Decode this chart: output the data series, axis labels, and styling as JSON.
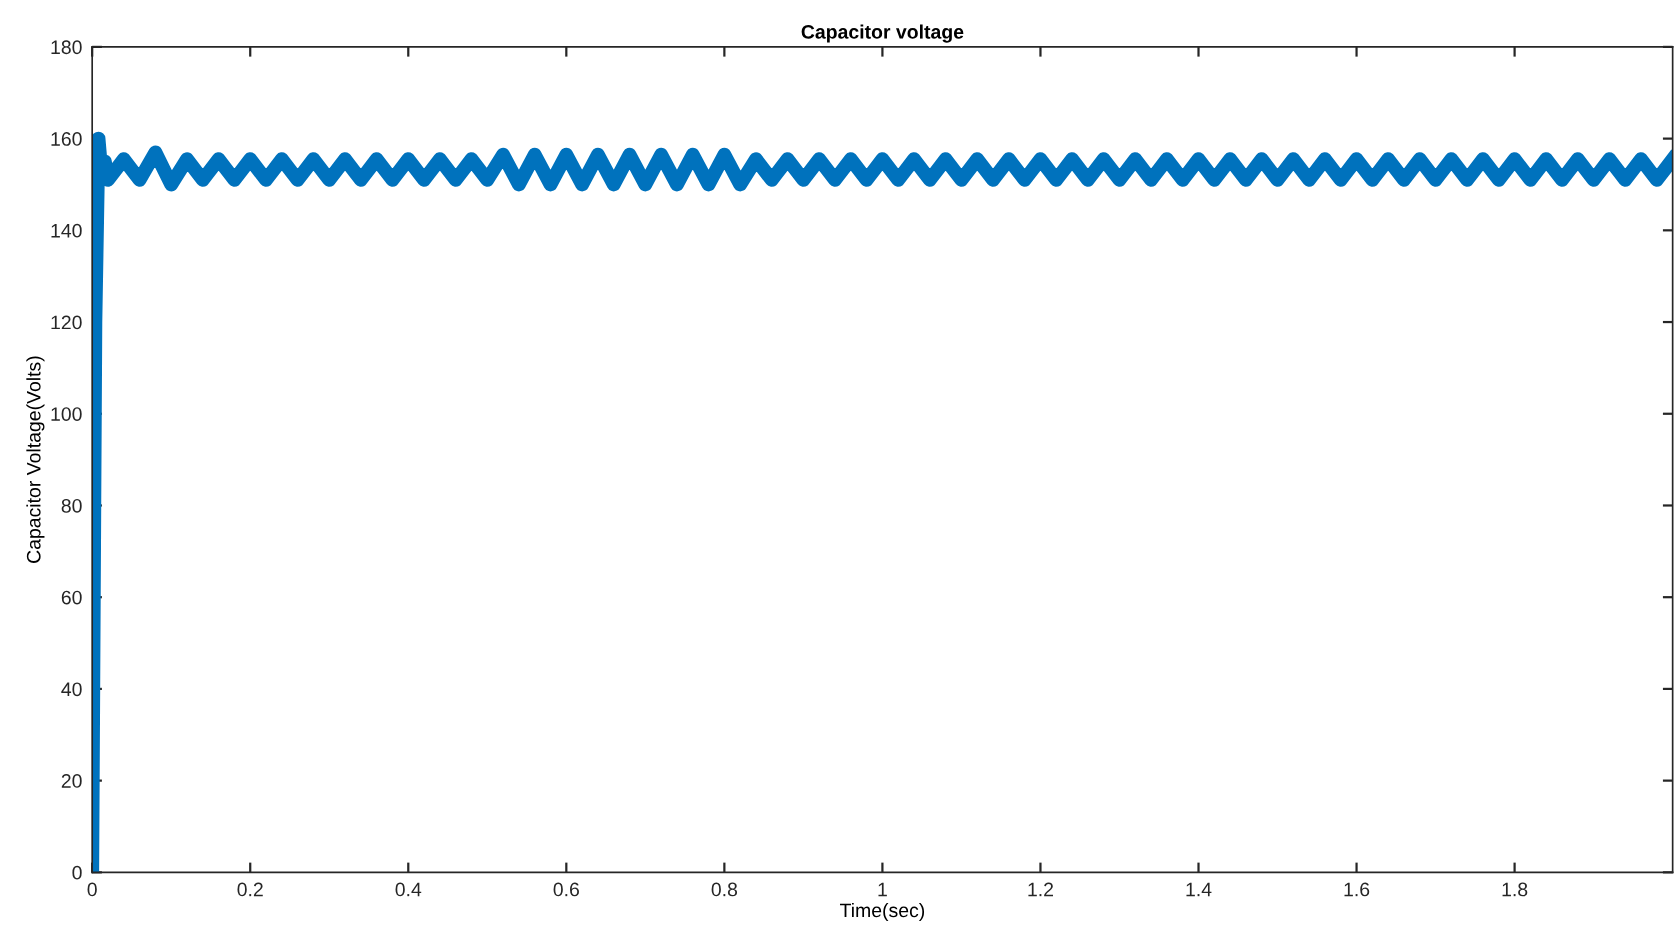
{
  "chart_data": {
    "type": "line",
    "title": "Capacitor voltage",
    "xlabel": "Time(sec)",
    "ylabel": "Capacitor Voltage(Volts)",
    "xlim": [
      0,
      2
    ],
    "xticks": [
      0,
      0.2,
      0.4,
      0.6,
      0.8,
      1,
      1.2,
      1.4,
      1.6,
      1.8
    ],
    "ylim": [
      0,
      180
    ],
    "yticks": [
      0,
      20,
      40,
      60,
      80,
      100,
      120,
      140,
      160,
      180
    ],
    "grid": false,
    "line_style": "solid",
    "series": [
      {
        "color": "#0072bd",
        "x": [
          0,
          0.004,
          0.008,
          0.012,
          0.016,
          0.02,
          0.04,
          0.06,
          0.08,
          0.1,
          0.12,
          0.14,
          0.16,
          0.18,
          0.2,
          0.22,
          0.24,
          0.26,
          0.28,
          0.3,
          0.32,
          0.34,
          0.36,
          0.38,
          0.4,
          0.42,
          0.44,
          0.46,
          0.48,
          0.5,
          0.52,
          0.54,
          0.56,
          0.58,
          0.6,
          0.62,
          0.64,
          0.66,
          0.68,
          0.7,
          0.72,
          0.74,
          0.76,
          0.78,
          0.8,
          0.82,
          0.84,
          0.86,
          0.88,
          0.9,
          0.92,
          0.94,
          0.96,
          0.98,
          1,
          1.02,
          1.04,
          1.06,
          1.08,
          1.1,
          1.12,
          1.14,
          1.16,
          1.18,
          1.2,
          1.22,
          1.24,
          1.26,
          1.28,
          1.3,
          1.32,
          1.34,
          1.36,
          1.38,
          1.4,
          1.42,
          1.44,
          1.46,
          1.48,
          1.5,
          1.52,
          1.54,
          1.56,
          1.58,
          1.6,
          1.62,
          1.64,
          1.66,
          1.68,
          1.7,
          1.72,
          1.74,
          1.76,
          1.78,
          1.8,
          1.82,
          1.84,
          1.86,
          1.88,
          1.9,
          1.92,
          1.94,
          1.96,
          1.98,
          2
        ],
        "values": [
          0,
          120,
          160,
          152,
          155,
          151,
          155.5,
          151,
          157,
          150,
          155.5,
          151,
          155.5,
          151,
          155.5,
          151,
          155.5,
          151,
          155.5,
          151,
          155.5,
          151,
          155.5,
          151,
          155.5,
          151,
          155.5,
          151,
          155.5,
          151,
          156.5,
          150,
          156.5,
          150,
          156.5,
          150,
          156.5,
          150,
          156.5,
          150,
          156.5,
          150,
          156.5,
          150,
          156.5,
          150,
          155.5,
          151,
          155.5,
          151,
          155.5,
          151,
          155.5,
          151,
          155.5,
          151,
          155.5,
          151,
          155.5,
          151,
          155.5,
          151,
          155.5,
          151,
          155.5,
          151,
          155.5,
          151,
          155.5,
          151,
          155.5,
          151,
          155.5,
          151,
          155.5,
          151,
          155.5,
          151,
          155.5,
          151,
          155.5,
          151,
          155.5,
          151,
          155.5,
          151,
          155.5,
          151,
          155.5,
          151,
          155.5,
          151,
          155.5,
          151,
          155.5,
          151,
          155.5,
          151,
          155.5,
          151,
          155.5,
          151,
          155.5,
          151,
          155.5
        ]
      }
    ]
  }
}
